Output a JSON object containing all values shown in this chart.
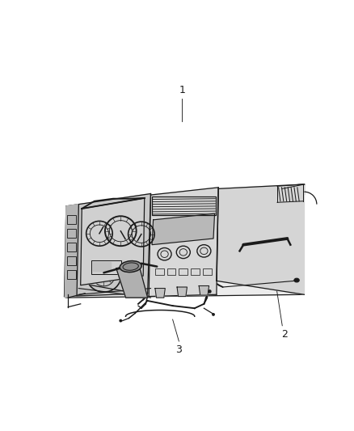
{
  "background_color": "#ffffff",
  "line_color": "#1a1a1a",
  "label_1": "1",
  "label_2": "2",
  "label_3": "3",
  "figsize": [
    4.38,
    5.33
  ],
  "dpi": 100
}
